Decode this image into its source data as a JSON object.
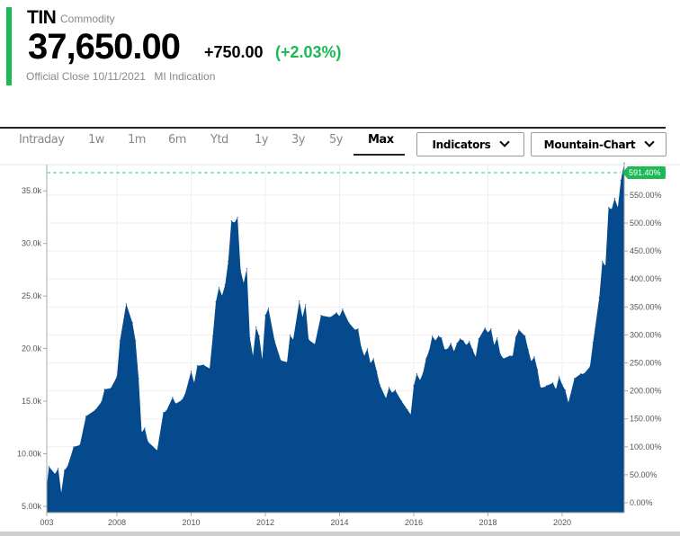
{
  "header": {
    "symbol": "TIN",
    "type": "Commodity",
    "price": "37,650.00",
    "change": "+750.00",
    "change_pct": "(+2.03%)",
    "close_label": "Official Close 10/11/2021",
    "indication": "MI Indication"
  },
  "tabs": [
    {
      "label": "Intraday"
    },
    {
      "label": "1w"
    },
    {
      "label": "1m"
    },
    {
      "label": "6m"
    },
    {
      "label": "Ytd"
    },
    {
      "label": "1y"
    },
    {
      "label": "3y"
    },
    {
      "label": "5y"
    },
    {
      "label": "Max",
      "active": true
    }
  ],
  "buttons": {
    "indicators": "Indicators",
    "chart_type": "Mountain-Chart"
  },
  "colors": {
    "accent": "#1db954",
    "area": "#054a8c",
    "up": "#1db954",
    "dashed": "#7fd9a6"
  },
  "chart_data": {
    "type": "area",
    "xlim": [
      "2006-02",
      "2021-10"
    ],
    "ylim": [
      4.4,
      37.5
    ],
    "grid": true,
    "y_ticks": [
      {
        "value": 5,
        "label": "5.00k"
      },
      {
        "value": 10,
        "label": "10.00k"
      },
      {
        "value": 15,
        "label": "15.0k"
      },
      {
        "value": 20,
        "label": "20.0k"
      },
      {
        "value": 25,
        "label": "25.0k"
      },
      {
        "value": 30,
        "label": "30.0k"
      },
      {
        "value": 35,
        "label": "35.0k"
      }
    ],
    "y2_ticks": [
      "0.00%",
      "50.00%",
      "100.00%",
      "150.00%",
      "200.00%",
      "250.00%",
      "300.00%",
      "350.00%",
      "400.00%",
      "450.00%",
      "500.00%",
      "550.00%"
    ],
    "x_ticks": [
      {
        "label": "003",
        "date": "2006-02"
      },
      {
        "label": "2008",
        "date": "2008-01"
      },
      {
        "label": "2010",
        "date": "2010-01"
      },
      {
        "label": "2012",
        "date": "2012-01"
      },
      {
        "label": "2014",
        "date": "2014-01"
      },
      {
        "label": "2016",
        "date": "2016-01"
      },
      {
        "label": "2018",
        "date": "2018-01"
      },
      {
        "label": "2020",
        "date": "2020-01"
      }
    ],
    "last_label": "591.40%",
    "unit": "k",
    "points": [
      [
        "2006-02",
        6.9
      ],
      [
        "2006-03",
        8.77
      ],
      [
        "2006-05",
        8.08
      ],
      [
        "2006-06",
        8.6
      ],
      [
        "2006-07",
        6.28
      ],
      [
        "2006-08",
        8.42
      ],
      [
        "2006-09",
        8.77
      ],
      [
        "2006-11",
        10.65
      ],
      [
        "2007-01",
        10.82
      ],
      [
        "2007-03",
        13.56
      ],
      [
        "2007-06",
        14.16
      ],
      [
        "2007-08",
        14.93
      ],
      [
        "2007-09",
        16.13
      ],
      [
        "2007-11",
        16.22
      ],
      [
        "2008-01",
        17.33
      ],
      [
        "2008-02",
        20.75
      ],
      [
        "2008-04",
        24.26
      ],
      [
        "2008-06",
        22.47
      ],
      [
        "2008-07",
        20.75
      ],
      [
        "2008-08",
        17.16
      ],
      [
        "2008-09",
        12.02
      ],
      [
        "2008-10",
        12.45
      ],
      [
        "2008-11",
        11.16
      ],
      [
        "2009-02",
        10.31
      ],
      [
        "2009-04",
        13.9
      ],
      [
        "2009-05",
        14.08
      ],
      [
        "2009-07",
        15.36
      ],
      [
        "2009-08",
        14.76
      ],
      [
        "2009-10",
        15.1
      ],
      [
        "2009-11",
        15.62
      ],
      [
        "2010-01",
        17.84
      ],
      [
        "2010-02",
        16.73
      ],
      [
        "2010-03",
        18.36
      ],
      [
        "2010-05",
        18.44
      ],
      [
        "2010-07",
        18.1
      ],
      [
        "2010-08",
        21.18
      ],
      [
        "2010-09",
        24.43
      ],
      [
        "2010-10",
        25.8
      ],
      [
        "2010-11",
        25.03
      ],
      [
        "2010-12",
        26.06
      ],
      [
        "2011-01",
        28.3
      ],
      [
        "2011-02",
        32.14
      ],
      [
        "2011-03",
        31.97
      ],
      [
        "2011-04",
        32.48
      ],
      [
        "2011-05",
        27.43
      ],
      [
        "2011-06",
        26.23
      ],
      [
        "2011-07",
        27.6
      ],
      [
        "2011-08",
        21.01
      ],
      [
        "2011-09",
        19.3
      ],
      [
        "2011-10",
        22.04
      ],
      [
        "2011-11",
        21.18
      ],
      [
        "2011-12",
        18.96
      ],
      [
        "2012-01",
        23.15
      ],
      [
        "2012-02",
        23.84
      ],
      [
        "2012-04",
        20.75
      ],
      [
        "2012-06",
        18.87
      ],
      [
        "2012-08",
        18.7
      ],
      [
        "2012-09",
        21.27
      ],
      [
        "2012-10",
        20.84
      ],
      [
        "2012-12",
        24.52
      ],
      [
        "2013-01",
        22.98
      ],
      [
        "2013-02",
        24.18
      ],
      [
        "2013-03",
        20.84
      ],
      [
        "2013-05",
        20.41
      ],
      [
        "2013-07",
        23.15
      ],
      [
        "2013-10",
        22.98
      ],
      [
        "2013-12",
        23.41
      ],
      [
        "2014-01",
        23.07
      ],
      [
        "2014-02",
        23.75
      ],
      [
        "2014-04",
        22.47
      ],
      [
        "2014-06",
        21.78
      ],
      [
        "2014-07",
        21.87
      ],
      [
        "2014-08",
        20.15
      ],
      [
        "2014-09",
        19.3
      ],
      [
        "2014-10",
        19.98
      ],
      [
        "2014-11",
        18.61
      ],
      [
        "2014-12",
        19.04
      ],
      [
        "2015-01",
        17.84
      ],
      [
        "2015-02",
        16.56
      ],
      [
        "2015-04",
        15.27
      ],
      [
        "2015-05",
        16.3
      ],
      [
        "2015-06",
        15.79
      ],
      [
        "2015-07",
        16.04
      ],
      [
        "2015-09",
        15.02
      ],
      [
        "2015-11",
        14.16
      ],
      [
        "2015-12",
        13.73
      ],
      [
        "2016-01",
        16.47
      ],
      [
        "2016-02",
        17.59
      ],
      [
        "2016-03",
        16.99
      ],
      [
        "2016-04",
        17.67
      ],
      [
        "2016-05",
        19.04
      ],
      [
        "2016-06",
        19.81
      ],
      [
        "2016-07",
        21.18
      ],
      [
        "2016-08",
        20.75
      ],
      [
        "2016-09",
        21.18
      ],
      [
        "2016-10",
        21.01
      ],
      [
        "2016-11",
        19.9
      ],
      [
        "2016-12",
        19.98
      ],
      [
        "2017-01",
        20.5
      ],
      [
        "2017-02",
        19.73
      ],
      [
        "2017-03",
        20.5
      ],
      [
        "2017-04",
        20.92
      ],
      [
        "2017-05",
        20.75
      ],
      [
        "2017-06",
        20.33
      ],
      [
        "2017-07",
        20.67
      ],
      [
        "2017-08",
        19.9
      ],
      [
        "2017-09",
        19.21
      ],
      [
        "2017-10",
        20.92
      ],
      [
        "2017-12",
        21.95
      ],
      [
        "2018-01",
        21.52
      ],
      [
        "2018-02",
        21.87
      ],
      [
        "2018-03",
        20.33
      ],
      [
        "2018-04",
        21.01
      ],
      [
        "2018-05",
        19.47
      ],
      [
        "2018-06",
        19.04
      ],
      [
        "2018-08",
        19.3
      ],
      [
        "2018-09",
        19.3
      ],
      [
        "2018-10",
        21.1
      ],
      [
        "2018-11",
        21.78
      ],
      [
        "2019-01",
        21.18
      ],
      [
        "2019-02",
        19.9
      ],
      [
        "2019-03",
        18.78
      ],
      [
        "2019-04",
        19.21
      ],
      [
        "2019-05",
        18.0
      ],
      [
        "2019-06",
        16.3
      ],
      [
        "2019-07",
        16.3
      ],
      [
        "2019-08",
        16.47
      ],
      [
        "2019-10",
        16.73
      ],
      [
        "2019-11",
        16.13
      ],
      [
        "2019-12",
        17.33
      ],
      [
        "2020-01",
        16.56
      ],
      [
        "2020-02",
        16.04
      ],
      [
        "2020-03",
        14.85
      ],
      [
        "2020-05",
        17.16
      ],
      [
        "2020-07",
        17.59
      ],
      [
        "2020-08",
        17.59
      ],
      [
        "2020-10",
        18.27
      ],
      [
        "2020-11",
        20.58
      ],
      [
        "2021-01",
        24.86
      ],
      [
        "2021-02",
        28.29
      ],
      [
        "2021-03",
        27.86
      ],
      [
        "2021-04",
        33.42
      ],
      [
        "2021-05",
        33.25
      ],
      [
        "2021-06",
        34.28
      ],
      [
        "2021-07",
        33.42
      ],
      [
        "2021-08",
        35.99
      ],
      [
        "2021-10",
        37.65
      ]
    ]
  }
}
